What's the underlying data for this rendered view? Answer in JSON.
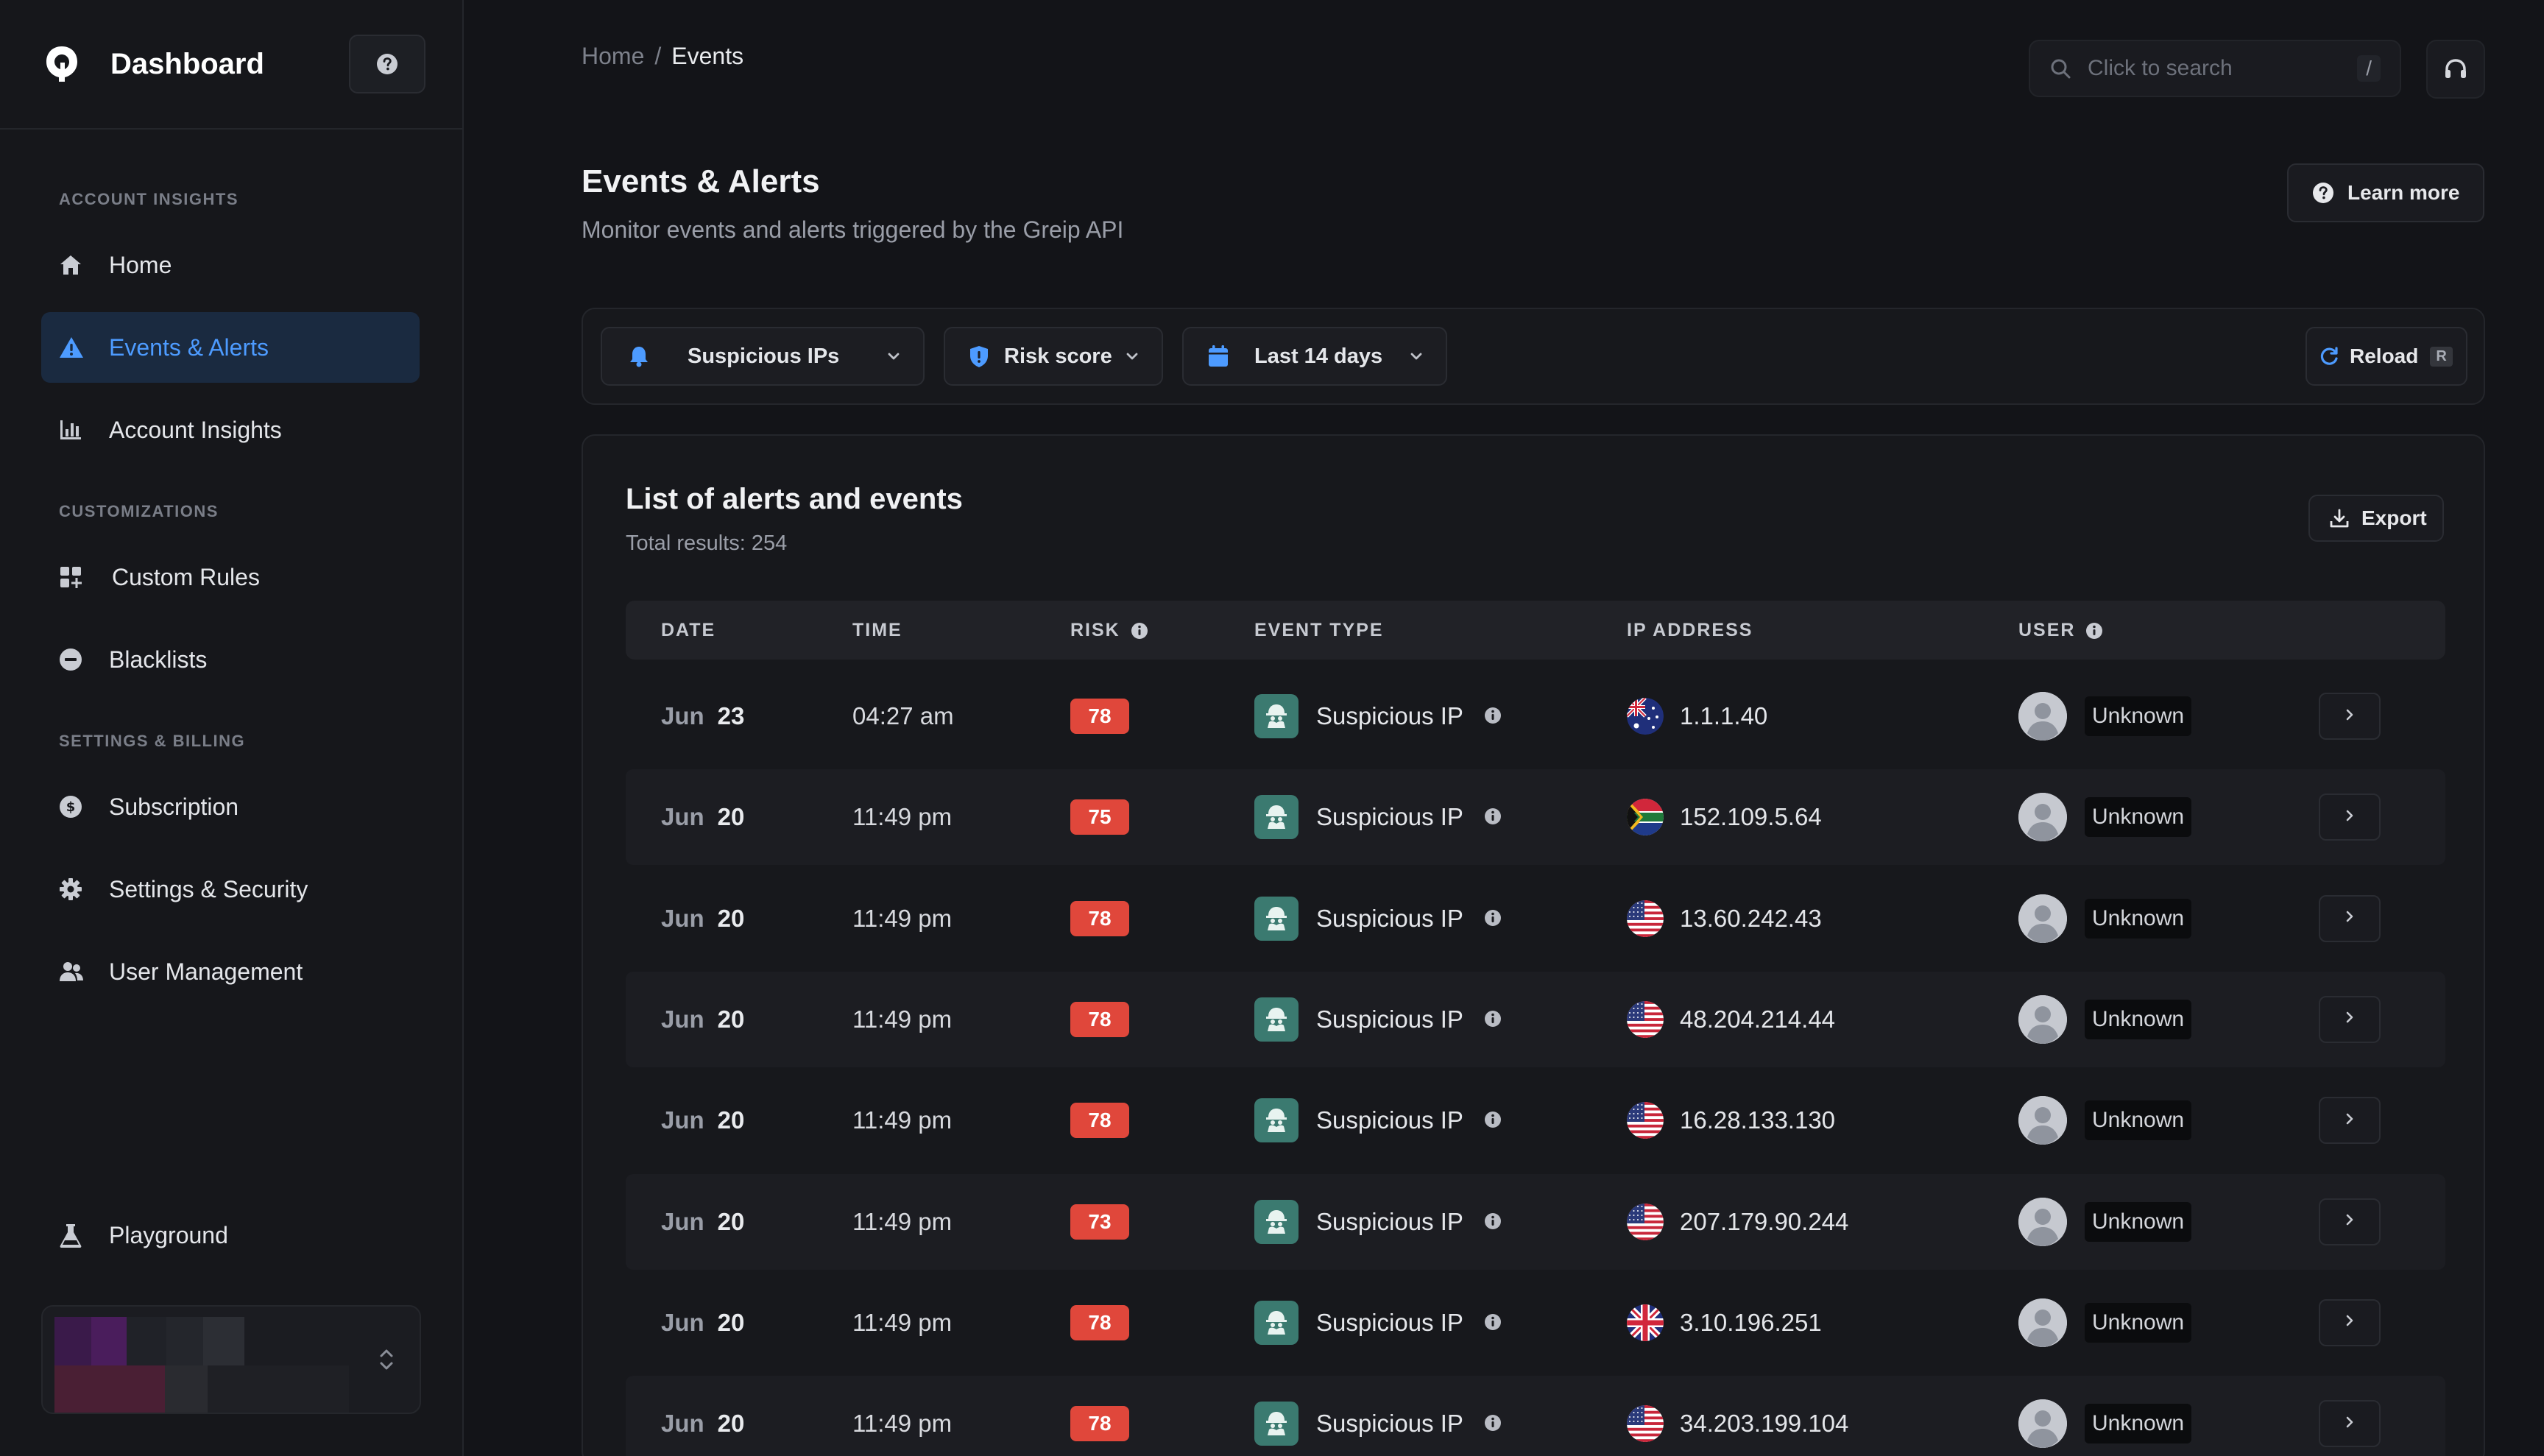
{
  "sidebar": {
    "brand": "Dashboard",
    "sections": {
      "account_insights": "ACCOUNT INSIGHTS",
      "customizations": "CUSTOMIZATIONS",
      "settings_billing": "SETTINGS & BILLING"
    },
    "items": {
      "home": "Home",
      "events": "Events & Alerts",
      "account_insights": "Account Insights",
      "custom_rules": "Custom Rules",
      "blacklists": "Blacklists",
      "subscription": "Subscription",
      "settings_security": "Settings & Security",
      "user_management": "User Management",
      "playground": "Playground"
    },
    "active_item": "events"
  },
  "breadcrumb": {
    "root": "Home",
    "separator": "/",
    "current": "Events"
  },
  "search": {
    "placeholder": "Click to search",
    "shortcut": "/"
  },
  "header": {
    "title": "Events & Alerts",
    "subtitle": "Monitor events and alerts triggered by the Greip API",
    "learn_more": "Learn more"
  },
  "filters": {
    "event_filter": "Suspicious IPs",
    "risk_filter": "Risk score",
    "date_filter": "Last 14 days",
    "reload": "Reload",
    "reload_key": "R"
  },
  "table": {
    "title": "List of alerts and events",
    "total": "Total results: 254",
    "export": "Export",
    "columns": {
      "date": "DATE",
      "time": "TIME",
      "risk": "RISK",
      "event_type": "EVENT TYPE",
      "ip": "IP ADDRESS",
      "user": "USER"
    },
    "rows": [
      {
        "month": "Jun",
        "day": "23",
        "time": "04:27 am",
        "risk": "78",
        "event_type": "Suspicious IP",
        "flag": "au",
        "ip": "1.1.1.40",
        "user": "Unknown"
      },
      {
        "month": "Jun",
        "day": "20",
        "time": "11:49 pm",
        "risk": "75",
        "event_type": "Suspicious IP",
        "flag": "za",
        "ip": "152.109.5.64",
        "user": "Unknown"
      },
      {
        "month": "Jun",
        "day": "20",
        "time": "11:49 pm",
        "risk": "78",
        "event_type": "Suspicious IP",
        "flag": "us",
        "ip": "13.60.242.43",
        "user": "Unknown"
      },
      {
        "month": "Jun",
        "day": "20",
        "time": "11:49 pm",
        "risk": "78",
        "event_type": "Suspicious IP",
        "flag": "us",
        "ip": "48.204.214.44",
        "user": "Unknown"
      },
      {
        "month": "Jun",
        "day": "20",
        "time": "11:49 pm",
        "risk": "78",
        "event_type": "Suspicious IP",
        "flag": "us",
        "ip": "16.28.133.130",
        "user": "Unknown"
      },
      {
        "month": "Jun",
        "day": "20",
        "time": "11:49 pm",
        "risk": "73",
        "event_type": "Suspicious IP",
        "flag": "us",
        "ip": "207.179.90.244",
        "user": "Unknown"
      },
      {
        "month": "Jun",
        "day": "20",
        "time": "11:49 pm",
        "risk": "78",
        "event_type": "Suspicious IP",
        "flag": "gb",
        "ip": "3.10.196.251",
        "user": "Unknown"
      },
      {
        "month": "Jun",
        "day": "20",
        "time": "11:49 pm",
        "risk": "78",
        "event_type": "Suspicious IP",
        "flag": "us",
        "ip": "34.203.199.104",
        "user": "Unknown"
      }
    ]
  },
  "colors": {
    "accent": "#4d9bff",
    "risk_badge": "#e0473b",
    "event_icon_bg": "#3b7a70",
    "background": "#131418"
  }
}
